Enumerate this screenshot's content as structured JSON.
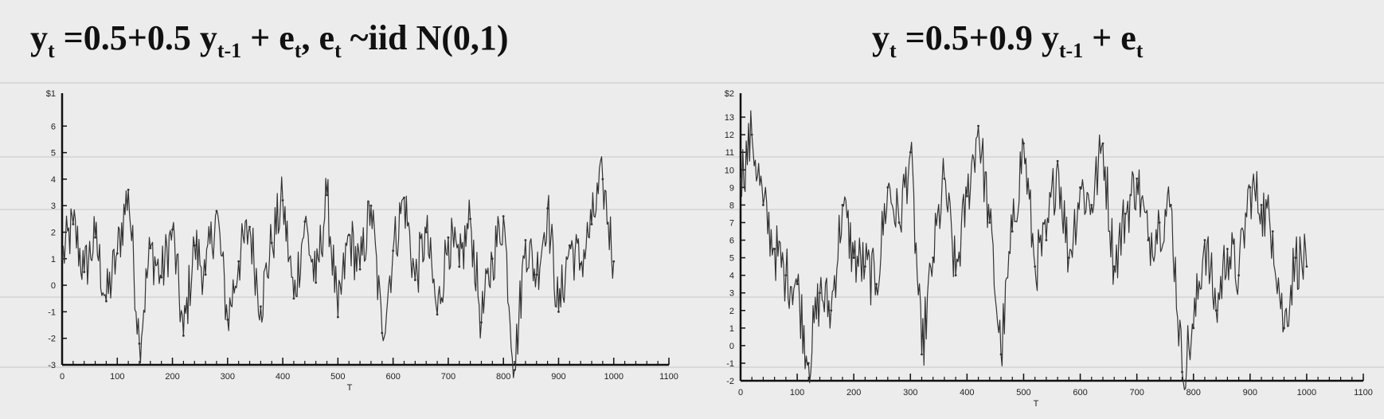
{
  "charts": [
    {
      "title_parts": [
        "y",
        "t",
        " =0.5+0.5 y",
        "t-1",
        " + e",
        "t",
        ",  e",
        "t",
        " ~iid N(0,1)"
      ],
      "chart_data": {
        "type": "line",
        "xlabel": "T",
        "ylabel": "",
        "xlim": [
          0,
          1100
        ],
        "ylim": [
          -3,
          7
        ],
        "x_ticks": [
          0,
          100,
          200,
          300,
          400,
          500,
          600,
          700,
          800,
          900,
          1000,
          1100
        ],
        "y_ticks": [
          -3,
          -2,
          -1,
          0,
          1,
          2,
          3,
          4,
          5,
          6
        ],
        "y_tick_labels": [
          "-3",
          "-2",
          "-1",
          "0",
          "1",
          "2",
          "3",
          "4",
          "5",
          "6"
        ],
        "top_label": "$1",
        "grid": false,
        "series": [
          {
            "x": [
              0,
              20,
              40,
              60,
              80,
              100,
              120,
              140,
              160,
              180,
              200,
              220,
              240,
              260,
              280,
              300,
              320,
              340,
              360,
              380,
              400,
              420,
              440,
              460,
              480,
              500,
              520,
              540,
              560,
              580,
              600,
              620,
              640,
              660,
              680,
              700,
              720,
              740,
              760,
              780,
              800,
              820,
              840,
              860,
              880,
              900,
              920,
              940,
              960,
              980,
              1000
            ],
            "y": [
              1.0,
              2.3,
              0.5,
              1.8,
              -0.6,
              1.2,
              3.6,
              -2.2,
              1.4,
              0.3,
              2.1,
              -1.9,
              1.5,
              0.4,
              2.8,
              -1.3,
              0.9,
              2.2,
              -0.8,
              1.6,
              3.2,
              -0.5,
              2.4,
              0.1,
              3.4,
              -1.2,
              1.9,
              0.6,
              3.0,
              -1.8,
              1.3,
              3.3,
              0.2,
              2.0,
              -1.1,
              1.8,
              0.7,
              2.5,
              -1.4,
              1.0,
              2.6,
              -3.2,
              1.7,
              0.4,
              2.9,
              -1.0,
              1.5,
              0.8,
              2.3,
              4.0,
              0.9
            ]
          }
        ]
      }
    },
    {
      "title_parts": [
        "y",
        "t",
        " =0.5+0.9 y",
        "t-1",
        " + e",
        "t",
        "",
        "",
        ""
      ],
      "chart_data": {
        "type": "line",
        "xlabel": "T",
        "ylabel": "",
        "xlim": [
          0,
          1100
        ],
        "ylim": [
          -2,
          14
        ],
        "x_ticks": [
          0,
          100,
          200,
          300,
          400,
          500,
          600,
          700,
          800,
          900,
          1000,
          1100
        ],
        "y_ticks": [
          -2,
          -1,
          0,
          1,
          2,
          3,
          4,
          5,
          6,
          7,
          8,
          9,
          10,
          11,
          12,
          13
        ],
        "y_tick_labels": [
          "-2",
          "-1",
          "0",
          "1",
          "2",
          "3",
          "4",
          "5",
          "6",
          "7",
          "8",
          "9",
          "10",
          "11",
          "12",
          "13"
        ],
        "top_label": "$2",
        "grid": false,
        "series": [
          {
            "x": [
              0,
              20,
              40,
              60,
              80,
              100,
              120,
              140,
              160,
              180,
              200,
              220,
              240,
              260,
              280,
              300,
              320,
              340,
              360,
              380,
              400,
              420,
              440,
              460,
              480,
              500,
              520,
              540,
              560,
              580,
              600,
              620,
              640,
              660,
              680,
              700,
              720,
              740,
              760,
              780,
              800,
              820,
              840,
              860,
              880,
              900,
              920,
              940,
              960,
              980,
              1000
            ],
            "y": [
              9.5,
              12.0,
              8.0,
              5.5,
              4.0,
              3.5,
              -1.0,
              3.0,
              2.0,
              8.0,
              5.0,
              4.5,
              3.5,
              9.0,
              7.0,
              11.0,
              -0.5,
              5.0,
              9.5,
              4.0,
              8.5,
              12.5,
              7.0,
              -0.5,
              6.5,
              11.5,
              4.5,
              6.0,
              10.5,
              5.0,
              9.0,
              8.0,
              11.5,
              4.5,
              7.5,
              9.5,
              6.0,
              7.0,
              8.0,
              -1.5,
              1.0,
              6.0,
              2.0,
              5.5,
              4.0,
              9.0,
              8.0,
              6.5,
              1.0,
              5.0,
              4.5
            ]
          }
        ]
      }
    }
  ]
}
